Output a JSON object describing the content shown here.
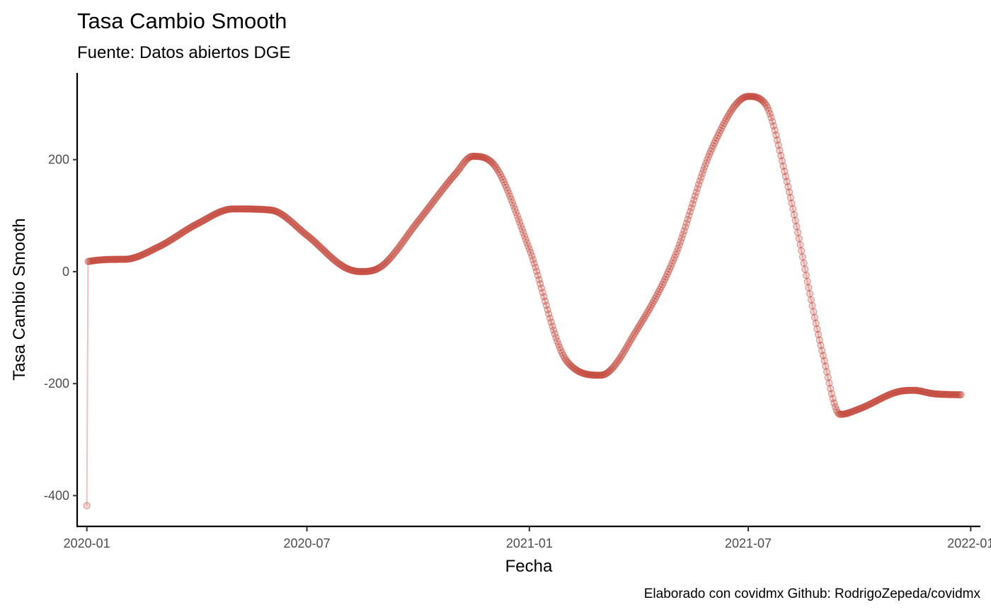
{
  "chart_data": {
    "type": "line",
    "title": "Tasa Cambio Smooth",
    "subtitle": "Fuente: Datos abiertos DGE",
    "xlabel": "Fecha",
    "ylabel": "Tasa Cambio Smooth",
    "caption": "Elaborado con covidmx Github: RodrigoZepeda/covidmx",
    "x_ticks": [
      "2020-01",
      "2020-07",
      "2021-01",
      "2021-07",
      "2022-01"
    ],
    "y_ticks": [
      -400,
      -200,
      0,
      200
    ],
    "xlim": [
      "2019-12-24",
      "2022-01-09"
    ],
    "ylim": [
      -455,
      355
    ],
    "grid": false,
    "legend": "none",
    "series_color": "#c0392b",
    "series": [
      {
        "x": [
          "2020-01-01",
          "2020-01-02",
          "2020-02-01",
          "2020-03-01",
          "2020-04-01",
          "2020-05-01",
          "2020-06-01",
          "2020-07-01",
          "2020-08-01",
          "2020-08-15",
          "2020-09-01",
          "2020-10-01",
          "2020-11-01",
          "2020-11-15",
          "2020-12-01",
          "2021-01-01",
          "2021-02-01",
          "2021-03-01",
          "2021-04-01",
          "2021-05-01",
          "2021-06-01",
          "2021-07-01",
          "2021-07-15",
          "2021-08-01",
          "2021-09-01",
          "2021-09-15",
          "2021-10-01",
          "2021-11-01",
          "2021-11-15",
          "2021-12-01",
          "2021-12-24"
        ],
        "y": [
          -418,
          18,
          22,
          45,
          85,
          112,
          110,
          65,
          8,
          0,
          10,
          90,
          175,
          206,
          195,
          40,
          -160,
          -185,
          -100,
          25,
          220,
          313,
          300,
          170,
          -150,
          -255,
          -245,
          -215,
          -212,
          -218,
          -220
        ]
      }
    ]
  }
}
